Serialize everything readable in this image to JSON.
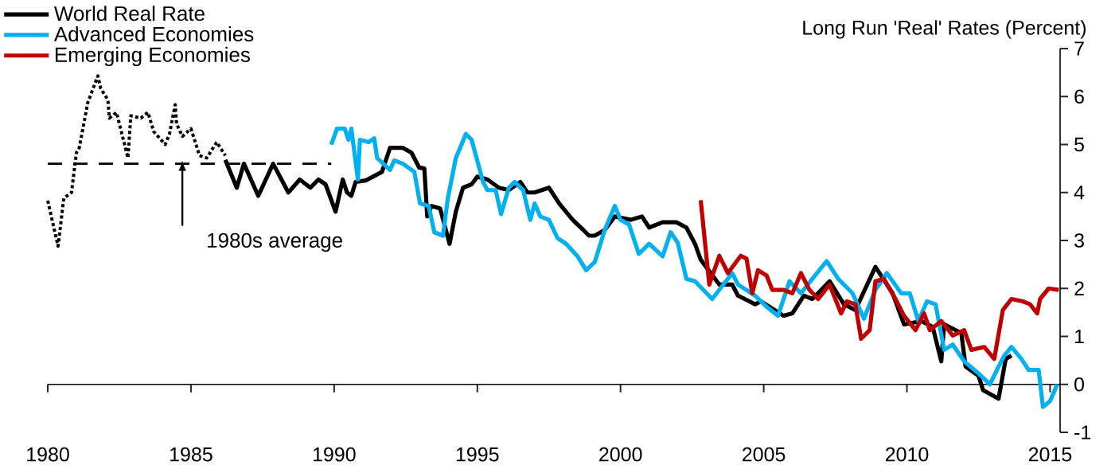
{
  "chart_data": {
    "type": "line",
    "ylabel": "Long Run 'Real' Rates (Percent)",
    "legend": "top left",
    "line_style": "solid",
    "xlim": [
      1980,
      2015.35
    ],
    "ylim": [
      -1,
      7
    ],
    "xticks": [
      1980,
      1985,
      1990,
      1995,
      2000,
      2005,
      2010,
      2015
    ],
    "yticks": [
      -1,
      0,
      1,
      2,
      3,
      4,
      5,
      6,
      7
    ],
    "annotations": [
      {
        "text": "1980s average",
        "x": 1984.7,
        "y": 4.6
      }
    ],
    "series": [
      {
        "name": "World Real Rate",
        "color": "#000000",
        "x": [
          1986.2,
          1986.6,
          1986.85,
          1987.35,
          1987.87,
          1988.4,
          1988.8,
          1989.17,
          1989.45,
          1989.7,
          1990.05,
          1990.3,
          1990.45,
          1990.6,
          1990.75,
          1991.1,
          1991.67,
          1991.95,
          1992.4,
          1992.7,
          1992.97,
          1993.15,
          1993.25,
          1993.4,
          1993.7,
          1994.03,
          1994.25,
          1994.5,
          1994.8,
          1995.0,
          1995.36,
          1995.75,
          1996.1,
          1996.5,
          1996.75,
          1997.0,
          1997.5,
          1997.86,
          1998.33,
          1998.7,
          1998.9,
          1999.1,
          1999.45,
          1999.8,
          2000.36,
          2000.75,
          2001.0,
          2001.47,
          2001.95,
          2002.3,
          2002.6,
          2002.8,
          2003.45,
          2003.9,
          2004.1,
          2004.7,
          2004.9,
          2005.7,
          2006.0,
          2006.4,
          2006.7,
          2007.3,
          2007.8,
          2008.2,
          2008.9,
          2009.5,
          2009.9,
          2010.5,
          2010.9,
          2011.2,
          2011.3,
          2011.9,
          2012.05,
          2012.5,
          2012.66,
          2013.2,
          2013.45,
          2013.65
        ],
        "values": [
          4.68,
          4.1,
          4.6,
          3.93,
          4.6,
          4.0,
          4.27,
          4.1,
          4.27,
          4.17,
          3.6,
          4.27,
          4.0,
          3.93,
          4.22,
          4.25,
          4.43,
          4.93,
          4.93,
          4.83,
          4.52,
          4.5,
          3.5,
          3.72,
          3.67,
          2.93,
          3.6,
          4.1,
          4.17,
          4.33,
          4.27,
          4.1,
          4.05,
          4.22,
          4.0,
          4.0,
          4.1,
          3.77,
          3.43,
          3.22,
          3.1,
          3.1,
          3.22,
          3.5,
          3.43,
          3.5,
          3.27,
          3.38,
          3.38,
          3.27,
          2.93,
          2.6,
          2.08,
          2.08,
          1.85,
          1.67,
          1.73,
          1.43,
          1.48,
          1.85,
          1.78,
          2.15,
          1.67,
          1.55,
          2.45,
          1.9,
          1.25,
          1.32,
          1.2,
          0.48,
          1.25,
          1.07,
          0.37,
          0.18,
          -0.12,
          -0.3,
          0.53,
          0.6
        ]
      },
      {
        "color": "#000000",
        "line_style": "dotted",
        "x": [
          1980.0,
          1980.36,
          1980.56,
          1980.83,
          1981.0,
          1981.1,
          1981.4,
          1981.75,
          1981.85,
          1982.1,
          1982.15,
          1982.4,
          1982.8,
          1982.9,
          1983.25,
          1983.5,
          1983.7,
          1984.1,
          1984.25,
          1984.45,
          1984.5,
          1984.7,
          1985.0,
          1985.3,
          1985.55,
          1985.9,
          1986.2
        ],
        "values": [
          3.83,
          2.88,
          3.88,
          4.0,
          4.83,
          4.93,
          5.88,
          6.43,
          6.17,
          5.93,
          5.55,
          5.67,
          4.72,
          5.6,
          5.55,
          5.67,
          5.27,
          5.0,
          5.22,
          5.83,
          5.43,
          5.17,
          5.33,
          4.77,
          4.72,
          5.05,
          4.77
        ]
      },
      {
        "color": "#000000",
        "line_style": "dashed",
        "x": [
          1980.0,
          1989.9
        ],
        "values": [
          4.6,
          4.6
        ]
      },
      {
        "name": "Advanced Economies",
        "color": "#00b0f0",
        "x": [
          1989.9,
          1990.1,
          1990.37,
          1990.5,
          1990.6,
          1990.83,
          1990.9,
          1991.2,
          1991.4,
          1991.5,
          1991.95,
          1992.1,
          1992.4,
          1992.8,
          1993.0,
          1993.3,
          1993.5,
          1993.8,
          1993.97,
          1994.25,
          1994.6,
          1994.8,
          1995.2,
          1995.35,
          1995.64,
          1995.83,
          1996.1,
          1996.3,
          1996.6,
          1996.85,
          1997.0,
          1997.2,
          1997.5,
          1997.8,
          1998.1,
          1998.5,
          1998.8,
          1999.1,
          1999.45,
          1999.8,
          2000.0,
          2000.3,
          2000.64,
          2001.0,
          2001.47,
          2001.75,
          2002.0,
          2002.3,
          2002.6,
          2003.2,
          2003.9,
          2004.1,
          2004.7,
          2005.1,
          2005.5,
          2005.9,
          2006.3,
          2006.7,
          2007.2,
          2007.6,
          2008.1,
          2008.5,
          2008.9,
          2009.3,
          2009.8,
          2010.1,
          2010.4,
          2010.7,
          2011.0,
          2011.3,
          2011.6,
          2012.0,
          2012.5,
          2012.9,
          2013.2,
          2013.4,
          2013.65,
          2014.0,
          2014.25,
          2014.6,
          2014.75,
          2015.0,
          2015.25
        ],
        "values": [
          5.0,
          5.33,
          5.33,
          5.1,
          5.33,
          4.27,
          5.1,
          5.05,
          5.13,
          4.72,
          4.47,
          4.67,
          4.6,
          4.43,
          3.77,
          3.72,
          3.17,
          3.1,
          3.88,
          4.72,
          5.22,
          5.1,
          4.22,
          4.05,
          4.05,
          3.55,
          4.1,
          4.22,
          4.05,
          3.43,
          3.77,
          3.5,
          3.43,
          3.05,
          2.93,
          2.67,
          2.38,
          2.55,
          3.22,
          3.72,
          3.43,
          3.33,
          2.72,
          2.93,
          2.67,
          3.17,
          2.95,
          2.2,
          2.15,
          1.78,
          2.32,
          2.08,
          1.85,
          1.62,
          1.43,
          2.15,
          1.9,
          2.2,
          2.57,
          2.2,
          1.9,
          1.37,
          1.97,
          2.32,
          1.9,
          1.9,
          1.32,
          1.73,
          1.67,
          0.72,
          0.83,
          0.48,
          0.23,
          0.0,
          0.37,
          0.6,
          0.78,
          0.53,
          0.3,
          0.3,
          -0.47,
          -0.35,
          0.0
        ]
      },
      {
        "name": "Emerging Economies",
        "color": "#c00000",
        "x": [
          2002.8,
          2003.1,
          2003.45,
          2003.75,
          2004.2,
          2004.4,
          2004.6,
          2004.8,
          2005.1,
          2005.3,
          2005.7,
          2006.0,
          2006.3,
          2006.6,
          2006.9,
          2007.3,
          2007.7,
          2007.9,
          2008.2,
          2008.4,
          2008.7,
          2008.9,
          2009.2,
          2009.6,
          2009.9,
          2010.3,
          2010.6,
          2010.8,
          2011.2,
          2011.6,
          2012.0,
          2012.25,
          2012.7,
          2013.05,
          2013.35,
          2013.65,
          2014.05,
          2014.3,
          2014.55,
          2014.65,
          2014.95,
          2015.3
        ],
        "values": [
          3.84,
          2.08,
          2.68,
          2.32,
          2.68,
          2.62,
          1.9,
          2.38,
          2.27,
          1.97,
          1.97,
          1.9,
          2.32,
          1.97,
          1.78,
          2.08,
          1.48,
          1.73,
          1.67,
          0.95,
          1.13,
          2.15,
          2.2,
          1.78,
          1.43,
          1.13,
          1.48,
          1.13,
          1.32,
          1.02,
          1.13,
          0.72,
          0.78,
          0.53,
          1.55,
          1.78,
          1.73,
          1.67,
          1.48,
          1.78,
          2.0,
          1.97
        ]
      }
    ]
  }
}
